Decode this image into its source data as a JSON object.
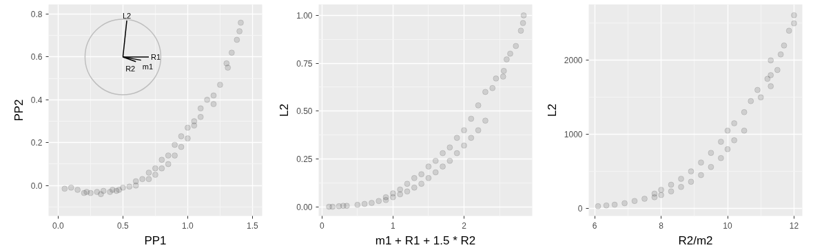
{
  "chart_data": [
    {
      "type": "scatter",
      "xlabel": "PP1",
      "ylabel": "PP2",
      "xlim": [
        -0.074,
        1.575
      ],
      "ylim": [
        -0.142,
        0.845
      ],
      "xticks": [
        {
          "value": 0,
          "label": "0.0"
        },
        0.5,
        {
          "value": 1,
          "label": "1.0"
        },
        1.5
      ],
      "yticks": [
        {
          "value": 0,
          "label": "0.0"
        },
        0.2,
        0.4,
        0.6,
        0.8
      ],
      "grid": true,
      "series": [
        {
          "color": "#000000",
          "marker": "circle",
          "x": [
            0.05,
            0.1,
            0.15,
            0.2,
            0.22,
            0.25,
            0.3,
            0.33,
            0.35,
            0.4,
            0.42,
            0.45,
            0.47,
            0.5,
            0.55,
            0.6,
            0.6,
            0.65,
            0.7,
            0.7,
            0.75,
            0.75,
            0.8,
            0.8,
            0.85,
            0.85,
            0.9,
            0.9,
            0.95,
            0.95,
            1.0,
            1.0,
            1.05,
            1.05,
            1.1,
            1.1,
            1.15,
            1.2,
            1.2,
            1.25,
            1.3,
            1.31,
            1.34,
            1.38,
            1.4,
            1.41
          ],
          "values": [
            -0.015,
            -0.01,
            -0.02,
            -0.035,
            -0.03,
            -0.035,
            -0.03,
            -0.04,
            -0.025,
            -0.03,
            -0.02,
            -0.025,
            -0.02,
            -0.01,
            -0.005,
            0.02,
            0.0,
            0.03,
            0.06,
            0.03,
            0.08,
            0.05,
            0.12,
            0.08,
            0.14,
            0.1,
            0.19,
            0.14,
            0.23,
            0.18,
            0.27,
            0.22,
            0.3,
            0.28,
            0.36,
            0.32,
            0.4,
            0.42,
            0.38,
            0.47,
            0.57,
            0.55,
            0.62,
            0.68,
            0.72,
            0.76
          ]
        },
        {
          "type": "line",
          "name": "L2",
          "color": "#000000",
          "x": [
            0.5,
            0.53
          ],
          "values": [
            0.6,
            0.77
          ]
        },
        {
          "type": "line",
          "name": "R1",
          "color": "#000000",
          "x": [
            0.5,
            0.7
          ],
          "values": [
            0.6,
            0.6
          ]
        },
        {
          "type": "line",
          "name": "m1",
          "color": "#000000",
          "x": [
            0.5,
            0.64
          ],
          "values": [
            0.6,
            0.585
          ]
        },
        {
          "type": "line",
          "name": "R2",
          "color": "#000000",
          "x": [
            0.5,
            0.6
          ],
          "values": [
            0.6,
            0.578
          ]
        }
      ]
    },
    {
      "type": "scatter",
      "xlabel": "m1 + R1 + 1.5 * R2",
      "ylabel": "L2",
      "xlim": [
        -0.046,
        2.96
      ],
      "ylim": [
        -0.048,
        1.057
      ],
      "xticks": [
        0,
        1,
        2
      ],
      "yticks": [
        {
          "value": 0,
          "label": "0.00"
        },
        0.25,
        {
          "value": 0.5,
          "label": "0.50"
        },
        0.75,
        {
          "value": 1,
          "label": "1.00"
        }
      ],
      "grid": true,
      "marker": "circle",
      "series": [
        {
          "color": "#000000",
          "x": [
            0.1,
            0.15,
            0.24,
            0.3,
            0.35,
            0.5,
            0.6,
            0.7,
            0.8,
            0.9,
            0.9,
            1.0,
            1.0,
            1.1,
            1.1,
            1.2,
            1.2,
            1.3,
            1.3,
            1.4,
            1.4,
            1.5,
            1.5,
            1.6,
            1.6,
            1.7,
            1.7,
            1.8,
            1.8,
            1.9,
            1.9,
            2.0,
            2.0,
            2.1,
            2.1,
            2.2,
            2.2,
            2.3,
            2.3,
            2.4,
            2.45,
            2.55,
            2.56,
            2.6,
            2.65,
            2.73,
            2.8,
            2.83,
            2.84
          ],
          "values": [
            0.0,
            0.0,
            0.003,
            0.005,
            0.005,
            0.01,
            0.015,
            0.02,
            0.03,
            0.05,
            0.035,
            0.07,
            0.05,
            0.09,
            0.065,
            0.12,
            0.08,
            0.15,
            0.1,
            0.17,
            0.12,
            0.21,
            0.15,
            0.24,
            0.18,
            0.28,
            0.21,
            0.31,
            0.24,
            0.36,
            0.28,
            0.4,
            0.32,
            0.46,
            0.36,
            0.53,
            0.4,
            0.6,
            0.45,
            0.62,
            0.67,
            0.68,
            0.71,
            0.77,
            0.8,
            0.84,
            0.92,
            0.96,
            1.0
          ]
        }
      ]
    },
    {
      "type": "scatter",
      "xlabel": "R2/m2",
      "ylabel": "L2",
      "xlim": [
        5.82,
        12.25
      ],
      "ylim": [
        -102,
        2755
      ],
      "xticks": [
        6,
        8,
        10,
        12
      ],
      "yticks": [
        0,
        1000,
        2000
      ],
      "grid": true,
      "marker": "circle",
      "series": [
        {
          "color": "#000000",
          "x": [
            6.1,
            6.35,
            6.6,
            6.9,
            7.2,
            7.5,
            7.8,
            7.8,
            8.0,
            8.0,
            8.3,
            8.3,
            8.6,
            8.6,
            8.9,
            8.9,
            9.2,
            9.2,
            9.5,
            9.5,
            9.8,
            9.8,
            10.0,
            10.0,
            10.2,
            10.2,
            10.5,
            10.5,
            10.7,
            10.9,
            11.0,
            11.2,
            11.3,
            11.3,
            11.3,
            11.5,
            11.6,
            11.7,
            11.85,
            12.0,
            12.0
          ],
          "values": [
            30,
            40,
            50,
            70,
            100,
            130,
            200,
            150,
            250,
            180,
            320,
            230,
            400,
            290,
            500,
            360,
            620,
            450,
            750,
            560,
            900,
            680,
            1050,
            800,
            1150,
            920,
            1300,
            1050,
            1450,
            1600,
            1500,
            1750,
            1800,
            1650,
            2000,
            1870,
            2080,
            2200,
            2400,
            2500,
            2610
          ]
        }
      ]
    }
  ]
}
